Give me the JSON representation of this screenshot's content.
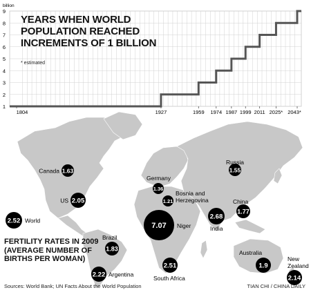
{
  "chart_title": "YEARS WHEN WORLD POPULATION REACHED INCREMENTS OF 1 BILLION",
  "chart_note": "* estimated",
  "map_title": "FERTILITY RATES IN 2009 (AVERAGE NUMBER OF BIRTHS PER WOMAN)",
  "sources": "Sources: World Bank; UN Facts About the World Population",
  "credit": "TIAN CHI / CHINA DAILY",
  "colors": {
    "land": "#c8c8c8",
    "bubble": "#000000",
    "step_line": "#555555",
    "grid": "#d0d0d0"
  },
  "chart_data": [
    {
      "type": "line",
      "title": "YEARS WHEN WORLD POPULATION REACHED INCREMENTS OF 1 BILLION",
      "ylabel": "billion",
      "yticks": [
        "1",
        "2",
        "3",
        "4",
        "5",
        "6",
        "7",
        "8",
        "9"
      ],
      "ylim": [
        1,
        9
      ],
      "step": true,
      "grid": true,
      "x": [
        "1804",
        "1927",
        "1959",
        "1974",
        "1987",
        "1999",
        "2011",
        "2025*",
        "2043*"
      ],
      "y": [
        1,
        2,
        3,
        4,
        5,
        6,
        7,
        8,
        9
      ]
    },
    {
      "type": "scatter",
      "title": "FERTILITY RATES IN 2009 (AVERAGE NUMBER OF BIRTHS PER WOMAN)",
      "points": [
        {
          "label": "Canada",
          "value": "1.63"
        },
        {
          "label": "US",
          "value": "2.05"
        },
        {
          "label": "World",
          "value": "2.52"
        },
        {
          "label": "Brazil",
          "value": "1.83"
        },
        {
          "label": "Argentina",
          "value": "2.22"
        },
        {
          "label": "Germany",
          "value": "1.36"
        },
        {
          "label": "Bosnia and Herzegovina",
          "value": "1.21"
        },
        {
          "label": "Niger",
          "value": "7.07"
        },
        {
          "label": "South Africa",
          "value": "2.51"
        },
        {
          "label": "India",
          "value": "2.68"
        },
        {
          "label": "Russia",
          "value": "1.55"
        },
        {
          "label": "China",
          "value": "1.77"
        },
        {
          "label": "Australia",
          "value": "1.9"
        },
        {
          "label": "New Zealand",
          "value": "2.14"
        }
      ]
    }
  ]
}
